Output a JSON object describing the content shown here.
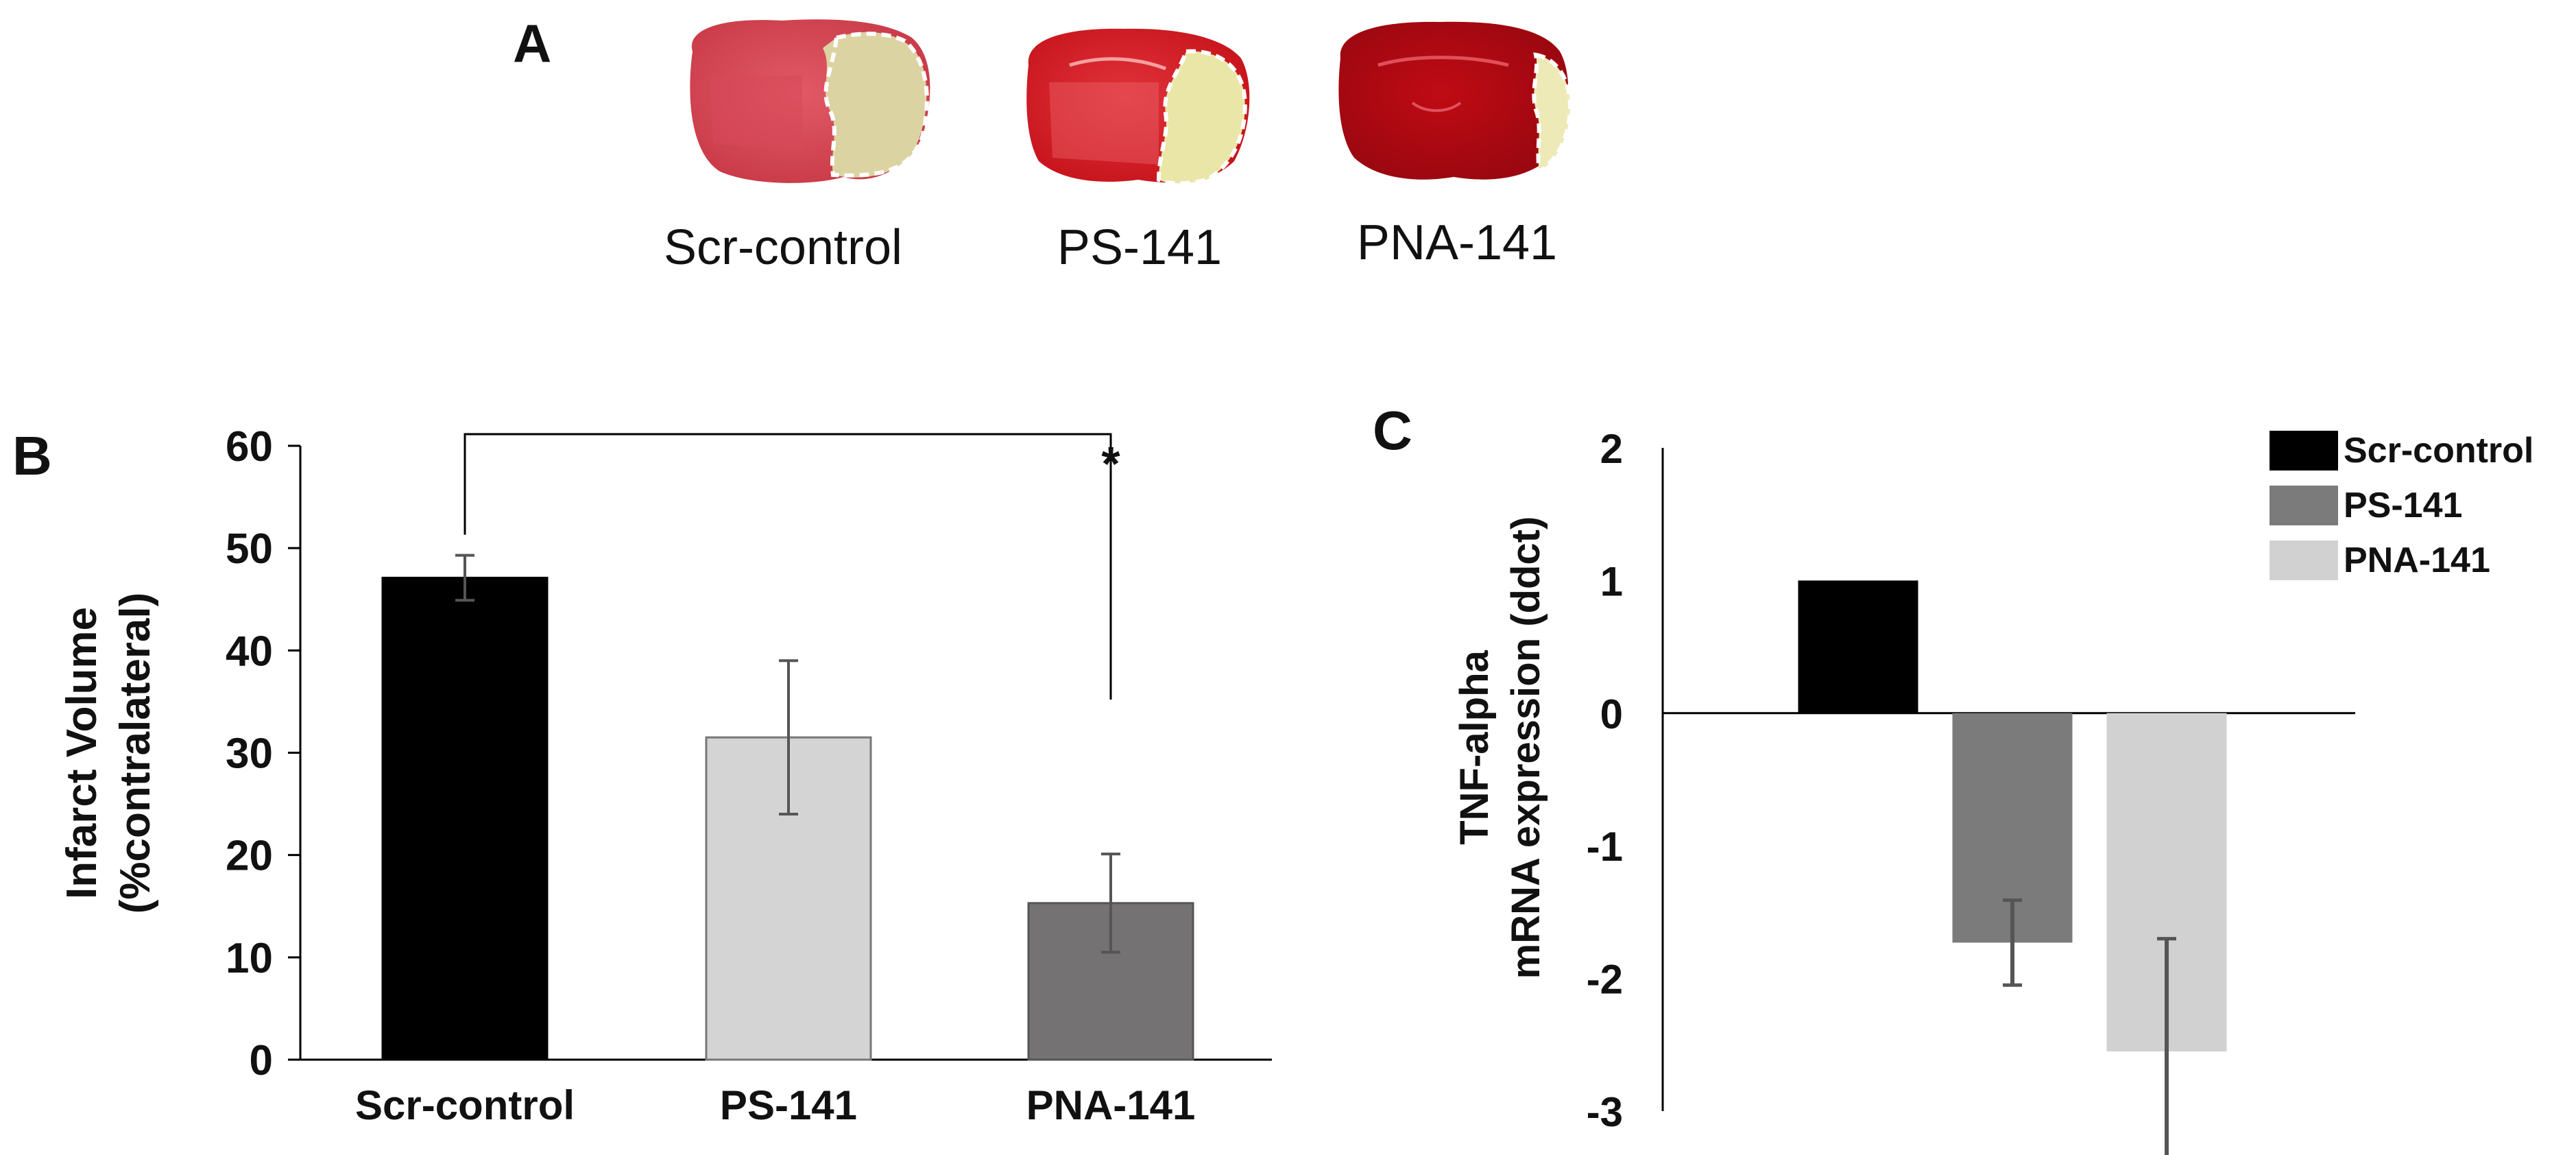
{
  "panel_a": {
    "label": "A",
    "images": [
      {
        "caption": "Scr-control"
      },
      {
        "caption": "PS-141"
      },
      {
        "caption": "PNA-141"
      }
    ]
  },
  "panel_b": {
    "label": "B"
  },
  "panel_c": {
    "label": "C"
  },
  "colors": {
    "scr": "#000000",
    "ps_b": "#d4d4d4",
    "pna_b": "#747272",
    "ps_c": "#7b7b7b",
    "pna_c": "#d1d1d1",
    "error": "#555555"
  },
  "chart_data": [
    {
      "type": "bar",
      "panel": "B",
      "ylabel": [
        "Infarct Volume",
        "(%contralateral)"
      ],
      "ylim": [
        0,
        60
      ],
      "yticks": [
        0,
        10,
        20,
        30,
        40,
        50,
        60
      ],
      "ytick_labels": [
        "0",
        "10",
        "20",
        "30",
        "40",
        "50",
        "60"
      ],
      "categories": [
        "Scr-control",
        "PS-141",
        "PNA-141"
      ],
      "values": [
        47.1,
        31.5,
        15.3
      ],
      "errors": [
        2.2,
        7.5,
        4.8
      ],
      "significance": {
        "from": "Scr-control",
        "to": "PNA-141",
        "marker": "*"
      }
    },
    {
      "type": "bar",
      "panel": "C",
      "ylabel": [
        "TNF-alpha",
        "mRNA expression (ddct)"
      ],
      "ylim": [
        -3,
        2
      ],
      "yticks": [
        2,
        1,
        0,
        -1,
        -2,
        -3
      ],
      "ytick_labels": [
        "2",
        "1",
        "0",
        "-1",
        "-2",
        "-3"
      ],
      "series": [
        {
          "name": "Scr-control",
          "value": 1.0,
          "error": 0
        },
        {
          "name": "PS-141",
          "value": -1.73,
          "error": 0.32
        },
        {
          "name": "PNA-141",
          "value": -2.55,
          "error": 0.85
        }
      ],
      "legend": [
        "Scr-control",
        "PS-141",
        "PNA-141"
      ],
      "legend_position": "top-right"
    }
  ]
}
